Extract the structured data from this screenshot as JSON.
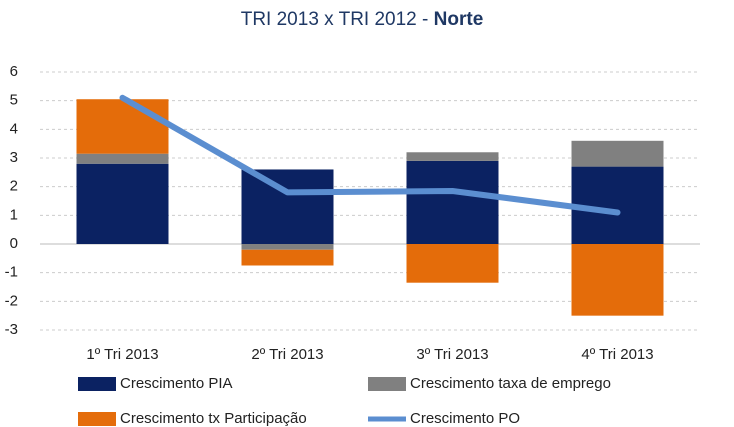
{
  "chart_data": {
    "type": "bar",
    "title": "TRI 2013 x TRI 2012 -",
    "title_emphasis": "Norte",
    "categories": [
      "1º Tri 2013",
      "2º Tri 2013",
      "3º Tri 2013",
      "4º Tri 2013"
    ],
    "series": [
      {
        "name": "Crescimento PIA",
        "color": "#0b2262",
        "values": [
          2.8,
          2.6,
          2.9,
          2.7
        ]
      },
      {
        "name": "Crescimento taxa de emprego",
        "color": "#808080",
        "values": [
          0.35,
          -0.2,
          0.3,
          0.9
        ]
      },
      {
        "name": "Crescimento tx Participação",
        "color": "#e46c0a",
        "values": [
          1.9,
          -0.55,
          -1.35,
          -2.5
        ]
      },
      {
        "name": "Crescimento PO",
        "color": "#5b8ed0",
        "type": "line",
        "values": [
          5.1,
          1.8,
          1.85,
          1.1
        ]
      }
    ],
    "ylim": [
      -3,
      6
    ],
    "yticks": [
      -3,
      -2,
      -1,
      0,
      1,
      2,
      3,
      4,
      5,
      6
    ],
    "grid": true,
    "stacked": true,
    "legend": "bottom"
  }
}
